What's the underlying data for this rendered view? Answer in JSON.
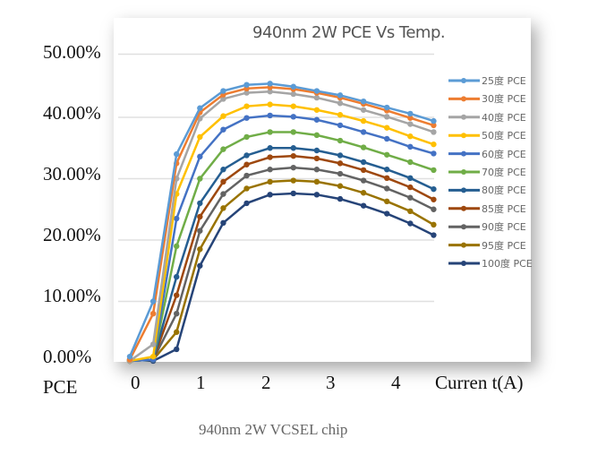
{
  "chart_data": {
    "type": "line",
    "title": "940nm 2W PCE Vs Temp.",
    "caption": "940nm 2W VCSEL chip",
    "ylabel": "PCE",
    "xlabel": "Curren  t(A)",
    "x_ticks": [
      "0",
      "1",
      "2",
      "3",
      "4"
    ],
    "y_ticks": [
      "0.00%",
      "10.00%",
      "20.00%",
      "30.00%",
      "40.00%",
      "50.00%"
    ],
    "ylim": [
      0,
      50
    ],
    "grid": true,
    "legend_placement": "right",
    "x": [
      0,
      0.35,
      0.7,
      1.05,
      1.4,
      1.75,
      2.1,
      2.45,
      2.8,
      3.15,
      3.5,
      3.85,
      4.2,
      4.55
    ],
    "series": [
      {
        "name": "25度 PCE",
        "color": "#5b9bd5",
        "values": [
          1,
          10,
          34,
          41.5,
          44.3,
          45.3,
          45.5,
          45,
          44.3,
          43.6,
          42.6,
          41.6,
          40.6,
          39.4
        ]
      },
      {
        "name": "30度 PCE",
        "color": "#ed7d31",
        "values": [
          0.5,
          8,
          32.5,
          40.8,
          43.7,
          44.7,
          44.9,
          44.6,
          44,
          43.2,
          42.2,
          41.1,
          39.9,
          38.7
        ]
      },
      {
        "name": "40度 PCE",
        "color": "#a5a5a5",
        "values": [
          0.3,
          3,
          30,
          39.8,
          43,
          44,
          44.2,
          43.8,
          43.2,
          42.3,
          41.2,
          40.1,
          38.9,
          37.6
        ]
      },
      {
        "name": "50度 PCE",
        "color": "#ffc000",
        "values": [
          0.3,
          1,
          27.5,
          36.8,
          40.2,
          41.8,
          42.1,
          41.8,
          41.2,
          40.4,
          39.4,
          38.3,
          36.9,
          35.6
        ]
      },
      {
        "name": "60度 PCE",
        "color": "#4472c4",
        "values": [
          0.3,
          0.5,
          23.5,
          33.6,
          38,
          39.9,
          40.3,
          40.1,
          39.6,
          38.7,
          37.6,
          36.5,
          35.2,
          34.1
        ]
      },
      {
        "name": "70度 PCE",
        "color": "#70ad47",
        "values": [
          0.3,
          0.5,
          19,
          30,
          34.8,
          36.8,
          37.6,
          37.6,
          37.1,
          36.2,
          35.1,
          33.9,
          32.7,
          31.4
        ]
      },
      {
        "name": "80度 PCE",
        "color": "#255e91",
        "values": [
          0.3,
          0.5,
          14,
          26,
          31.5,
          33.8,
          35,
          35,
          34.6,
          33.8,
          32.7,
          31.5,
          30.1,
          28.3
        ]
      },
      {
        "name": "85度 PCE",
        "color": "#9e480e",
        "values": [
          0.3,
          0.5,
          11,
          23.8,
          29.5,
          32.3,
          33.5,
          33.7,
          33.3,
          32.5,
          31.4,
          30.1,
          28.6,
          26.6
        ]
      },
      {
        "name": "90度 PCE",
        "color": "#636363",
        "values": [
          0.3,
          0.5,
          8,
          21.5,
          27.5,
          30.5,
          31.5,
          31.8,
          31.5,
          30.8,
          29.7,
          28.4,
          26.9,
          25
        ]
      },
      {
        "name": "95度 PCE",
        "color": "#997300",
        "values": [
          0.3,
          0.5,
          5,
          18.5,
          25.2,
          28.4,
          29.5,
          29.7,
          29.5,
          28.8,
          27.7,
          26.3,
          24.7,
          22.5
        ]
      },
      {
        "name": "100度 PCE",
        "color": "#264478",
        "values": [
          0.5,
          0.3,
          2.2,
          15.8,
          22.8,
          26,
          27.4,
          27.6,
          27.4,
          26.7,
          25.6,
          24.3,
          22.7,
          20.8
        ]
      }
    ]
  }
}
